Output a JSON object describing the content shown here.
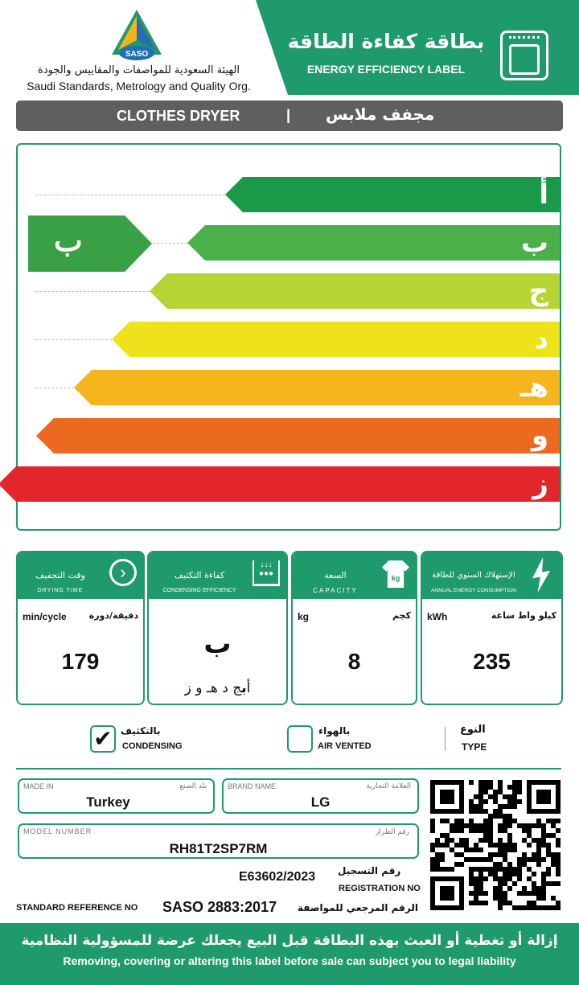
{
  "header": {
    "org_ar": "الهيئة السعودية للمواصفات والمقاييس والجودة",
    "org_en": "Saudi Standards, Metrology and Quality Org.",
    "logo_text": "SASO",
    "title_ar": "بطاقة كفاءة الطاقة",
    "title_en": "ENERGY EFFICIENCY LABEL",
    "icon": "dryer-icon"
  },
  "product": {
    "en": "CLOTHES DRYER",
    "sep": "|",
    "ar": "مجفف ملابس"
  },
  "scale": {
    "classes": [
      {
        "label": "أ",
        "color": "#1a9a48"
      },
      {
        "label": "ب",
        "color": "#4cb04a"
      },
      {
        "label": "ج",
        "color": "#b6d433"
      },
      {
        "label": "د",
        "color": "#eee21b"
      },
      {
        "label": "هـ",
        "color": "#f6b51d"
      },
      {
        "label": "و",
        "color": "#ec6a1f"
      },
      {
        "label": "ز",
        "color": "#e2262b"
      }
    ],
    "rating": "ب",
    "rating_color": "#3aa046"
  },
  "panels": {
    "drying": {
      "title_ar": "وقت التجفيف",
      "title_en": "DRYING TIME",
      "unit_en": "min/cycle",
      "unit_ar": "دقيقة/دورة",
      "value": "179",
      "icon": "clock-icon"
    },
    "condensing": {
      "title_ar": "كفاءة التكثيف",
      "title_en": "CONDENSING EFFICIENCY",
      "value": "ب",
      "scale_a": "أ",
      "scale_b": "ب",
      "scale_rest": "ج د هـ و ز",
      "icon": "water-drops-icon"
    },
    "capacity": {
      "title_ar": "السعة",
      "title_en": "CAPACITY",
      "unit_en": "kg",
      "unit_ar": "كجم",
      "value": "8",
      "icon_text": "kg",
      "icon": "tshirt-icon"
    },
    "energy": {
      "title_ar": "الإستهلاك السنوي للطاقة",
      "title_en": "ANNUAL ENERGY CONSUMPTION",
      "unit_en": "kWh",
      "unit_ar": "كيلو واط ساعة",
      "value": "235",
      "icon": "lightning-icon"
    }
  },
  "type": {
    "condensing_ar": "بالتكثيف",
    "condensing_en": "CONDENSING",
    "condensing_checked": true,
    "vented_ar": "بالهواء",
    "vented_en": "AIR VENTED",
    "vented_checked": false,
    "label_ar": "النوع",
    "label_en": "TYPE"
  },
  "info": {
    "made_in_en": "MADE IN",
    "made_in_ar": "بلد الصنع",
    "made_in": "Turkey",
    "brand_en": "BRAND NAME",
    "brand_ar": "العلامة التجارية",
    "brand": "LG",
    "model_en": "MODEL NUMBER",
    "model_ar": "رقم الطراز",
    "model": "RH81T2SP7RM",
    "reg_ar": "رقم التسجيل",
    "reg_en": "REGISTRATION NO",
    "reg": "E63602/2023",
    "std_en": "STANDARD REFERENCE NO",
    "std": "SASO 2883:2017",
    "std_ar": "الرقم المرجعي للمواصفة"
  },
  "footer": {
    "ar": "إزالة أو تغطية أو العبث بهذه البطاقة قبل البيع يجعلك عرضة للمسؤولية النظامية",
    "en": "Removing, covering or altering this label before sale can subject you to legal liability"
  }
}
